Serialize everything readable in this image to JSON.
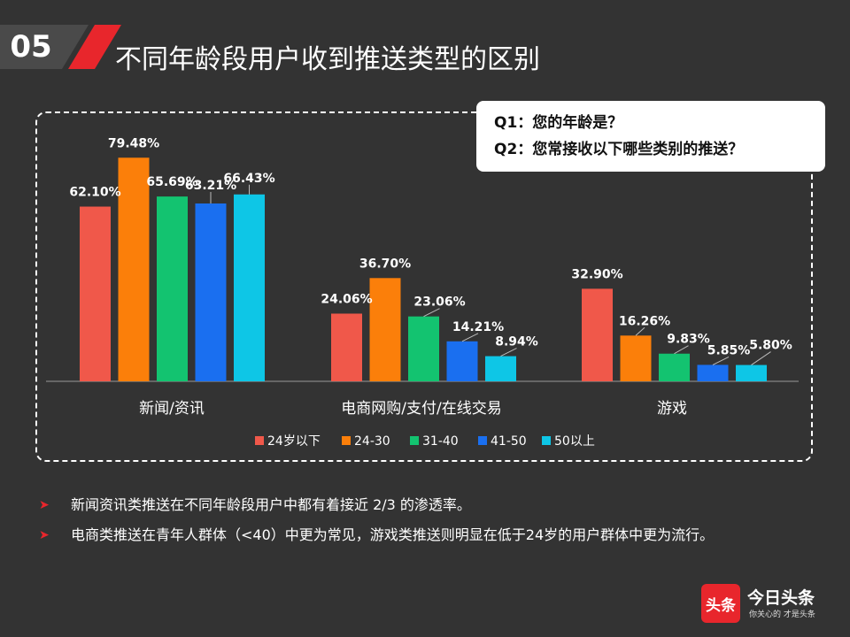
{
  "slide": {
    "number": "05",
    "title": "不同年龄段用户收到推送类型的区别"
  },
  "questions": {
    "q1": "Q1：您的年龄是？",
    "q2": "Q2：您常接收以下哪些类别的推送？"
  },
  "chart_data": {
    "type": "bar",
    "title": "",
    "categories": [
      "新闻/资讯",
      "电商网购/支付/在线交易",
      "游戏"
    ],
    "series": [
      {
        "name": "24岁以下",
        "color": "#f0584a",
        "values": [
          62.1,
          24.06,
          32.9
        ]
      },
      {
        "name": "24-30",
        "color": "#fb7f0a",
        "values": [
          79.48,
          36.7,
          16.26
        ]
      },
      {
        "name": "31-40",
        "color": "#13c370",
        "values": [
          65.69,
          23.06,
          9.83
        ]
      },
      {
        "name": "41-50",
        "color": "#1a6ff0",
        "values": [
          63.21,
          14.21,
          5.85
        ]
      },
      {
        "name": "50以上",
        "color": "#0ec6e6",
        "values": [
          66.43,
          8.94,
          5.8
        ]
      }
    ],
    "data_labels": [
      [
        "62.10%",
        "79.48%",
        "65.69%",
        "63.21%",
        "66.43%"
      ],
      [
        "24.06%",
        "36.70%",
        "23.06%",
        "14.21%",
        "8.94%"
      ],
      [
        "32.90%",
        "16.26%",
        "9.83%",
        "5.85%",
        "5.80%"
      ]
    ],
    "ylim": [
      0,
      100
    ],
    "xlabel": "",
    "ylabel": "",
    "legend_position": "bottom"
  },
  "bullets": [
    "新闻资讯类推送在不同年龄段用户中都有着接近 2/3 的渗透率。",
    "电商类推送在青年人群体（<40）中更为常见，游戏类推送则明显在低于24岁的用户群体中更为流行。"
  ],
  "logo": {
    "mark": "头条",
    "name": "今日头条",
    "tagline": "你关心的 才是头条"
  },
  "colors": {
    "background": "#333333",
    "accent": "#e8262c"
  }
}
